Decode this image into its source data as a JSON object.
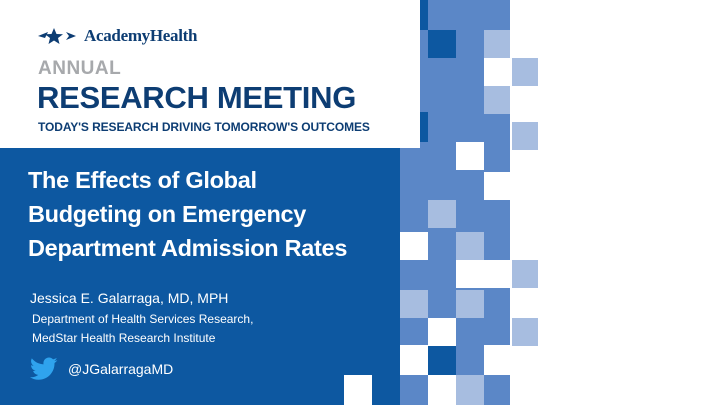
{
  "slide": {
    "logo_text": "AcademyHealth",
    "annual": "ANNUAL",
    "meeting_name": "RESEARCH MEETING",
    "tagline": "TODAY'S RESEARCH DRIVING TOMORROW'S OUTCOMES",
    "title_lines": [
      "The Effects of Global",
      "Budgeting on Emergency",
      "Department Admission Rates"
    ],
    "author": "Jessica E. Galarraga, MD, MPH",
    "affiliation_lines": [
      "Department of Health Services Research,",
      "MedStar Health Research Institute"
    ],
    "twitter_handle": "@JGalarragaMD",
    "icons": [
      "academyhealth-logo-icon",
      "twitter-bird-icon"
    ]
  },
  "colors": {
    "primary_blue": "#0d58a1",
    "navy": "#0d3d73",
    "mid_blue": "#5b87c7",
    "light_blue": "#a7bde0",
    "gray": "#a7a9ac"
  }
}
